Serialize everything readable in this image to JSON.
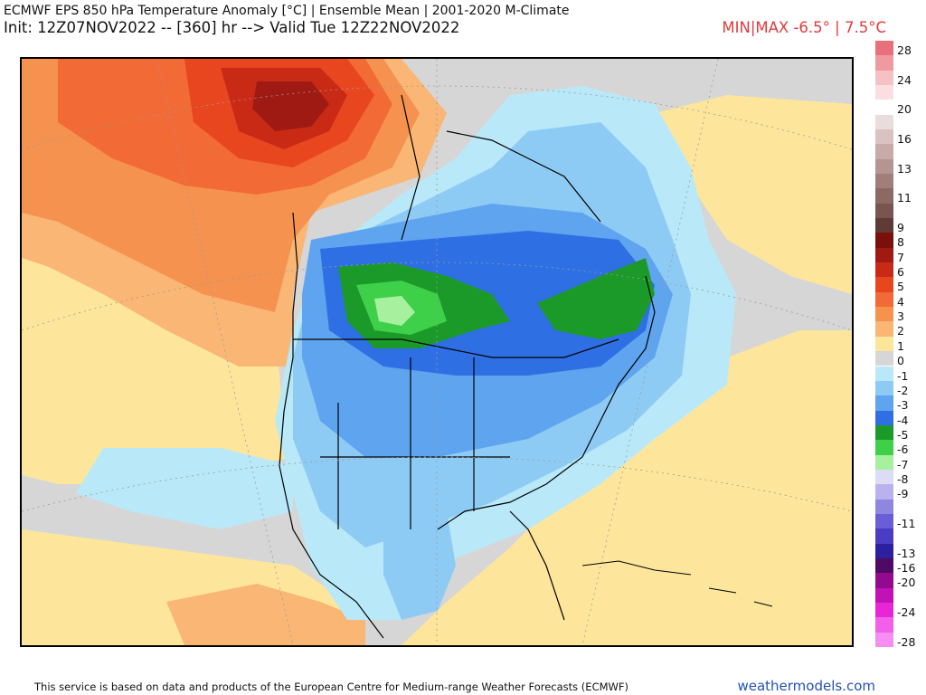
{
  "header": {
    "title": "ECMWF EPS 850 hPa Temperature Anomaly [°C] | Ensemble Mean | 2001-2020 M-Climate",
    "subtitle": "Init: 12Z07NOV2022 -- [360] hr --> Valid Tue 12Z22NOV2022",
    "minmax": "MIN|MAX -6.5° | 7.5°C"
  },
  "legend": [
    {
      "label": "28",
      "color": "#e8707a"
    },
    {
      "label": "",
      "color": "#ef9a9f"
    },
    {
      "label": "24",
      "color": "#f6c1c4"
    },
    {
      "label": "",
      "color": "#fbdfe0"
    },
    {
      "label": "20",
      "color": "#ffffff"
    },
    {
      "label": "",
      "color": "#e9dcdc"
    },
    {
      "label": "16",
      "color": "#d9c2c0"
    },
    {
      "label": "",
      "color": "#c7aba8"
    },
    {
      "label": "13",
      "color": "#b49591"
    },
    {
      "label": "",
      "color": "#a07f7a"
    },
    {
      "label": "11",
      "color": "#8c6a64"
    },
    {
      "label": "",
      "color": "#78554f"
    },
    {
      "label": "9",
      "color": "#5e3b34"
    },
    {
      "label": "8",
      "color": "#7a0f0c"
    },
    {
      "label": "7",
      "color": "#9e1a12"
    },
    {
      "label": "6",
      "color": "#c92a16"
    },
    {
      "label": "5",
      "color": "#e8461f"
    },
    {
      "label": "4",
      "color": "#f26a35"
    },
    {
      "label": "3",
      "color": "#f6924f"
    },
    {
      "label": "2",
      "color": "#f9b674"
    },
    {
      "label": "1",
      "color": "#fde69c"
    },
    {
      "label": "0",
      "color": "#d6d6d6"
    },
    {
      "label": "-1",
      "color": "#b9e9f8"
    },
    {
      "label": "-2",
      "color": "#8ecbf4"
    },
    {
      "label": "-3",
      "color": "#5fa4ee"
    },
    {
      "label": "-4",
      "color": "#2e6fe3"
    },
    {
      "label": "-5",
      "color": "#1b9a2a"
    },
    {
      "label": "-6",
      "color": "#3fd04a"
    },
    {
      "label": "-7",
      "color": "#a6f09e"
    },
    {
      "label": "-8",
      "color": "#dcdcf6"
    },
    {
      "label": "-9",
      "color": "#b9b2ee"
    },
    {
      "label": "",
      "color": "#8f86e0"
    },
    {
      "label": "-11",
      "color": "#6a5ed6"
    },
    {
      "label": "",
      "color": "#4a3cc4"
    },
    {
      "label": "-13",
      "color": "#2c1fa0"
    },
    {
      "label": "-16",
      "color": "#4e0a64"
    },
    {
      "label": "-20",
      "color": "#920a8e"
    },
    {
      "label": "",
      "color": "#c211b6"
    },
    {
      "label": "-24",
      "color": "#e826d8"
    },
    {
      "label": "",
      "color": "#f25fe8"
    },
    {
      "label": "-28",
      "color": "#f58ef0"
    }
  ],
  "footer": {
    "attribution": "This service is based on data and products of the European Centre for Medium-range Weather Forecasts (ECMWF)",
    "site": "weathermodels.com"
  }
}
